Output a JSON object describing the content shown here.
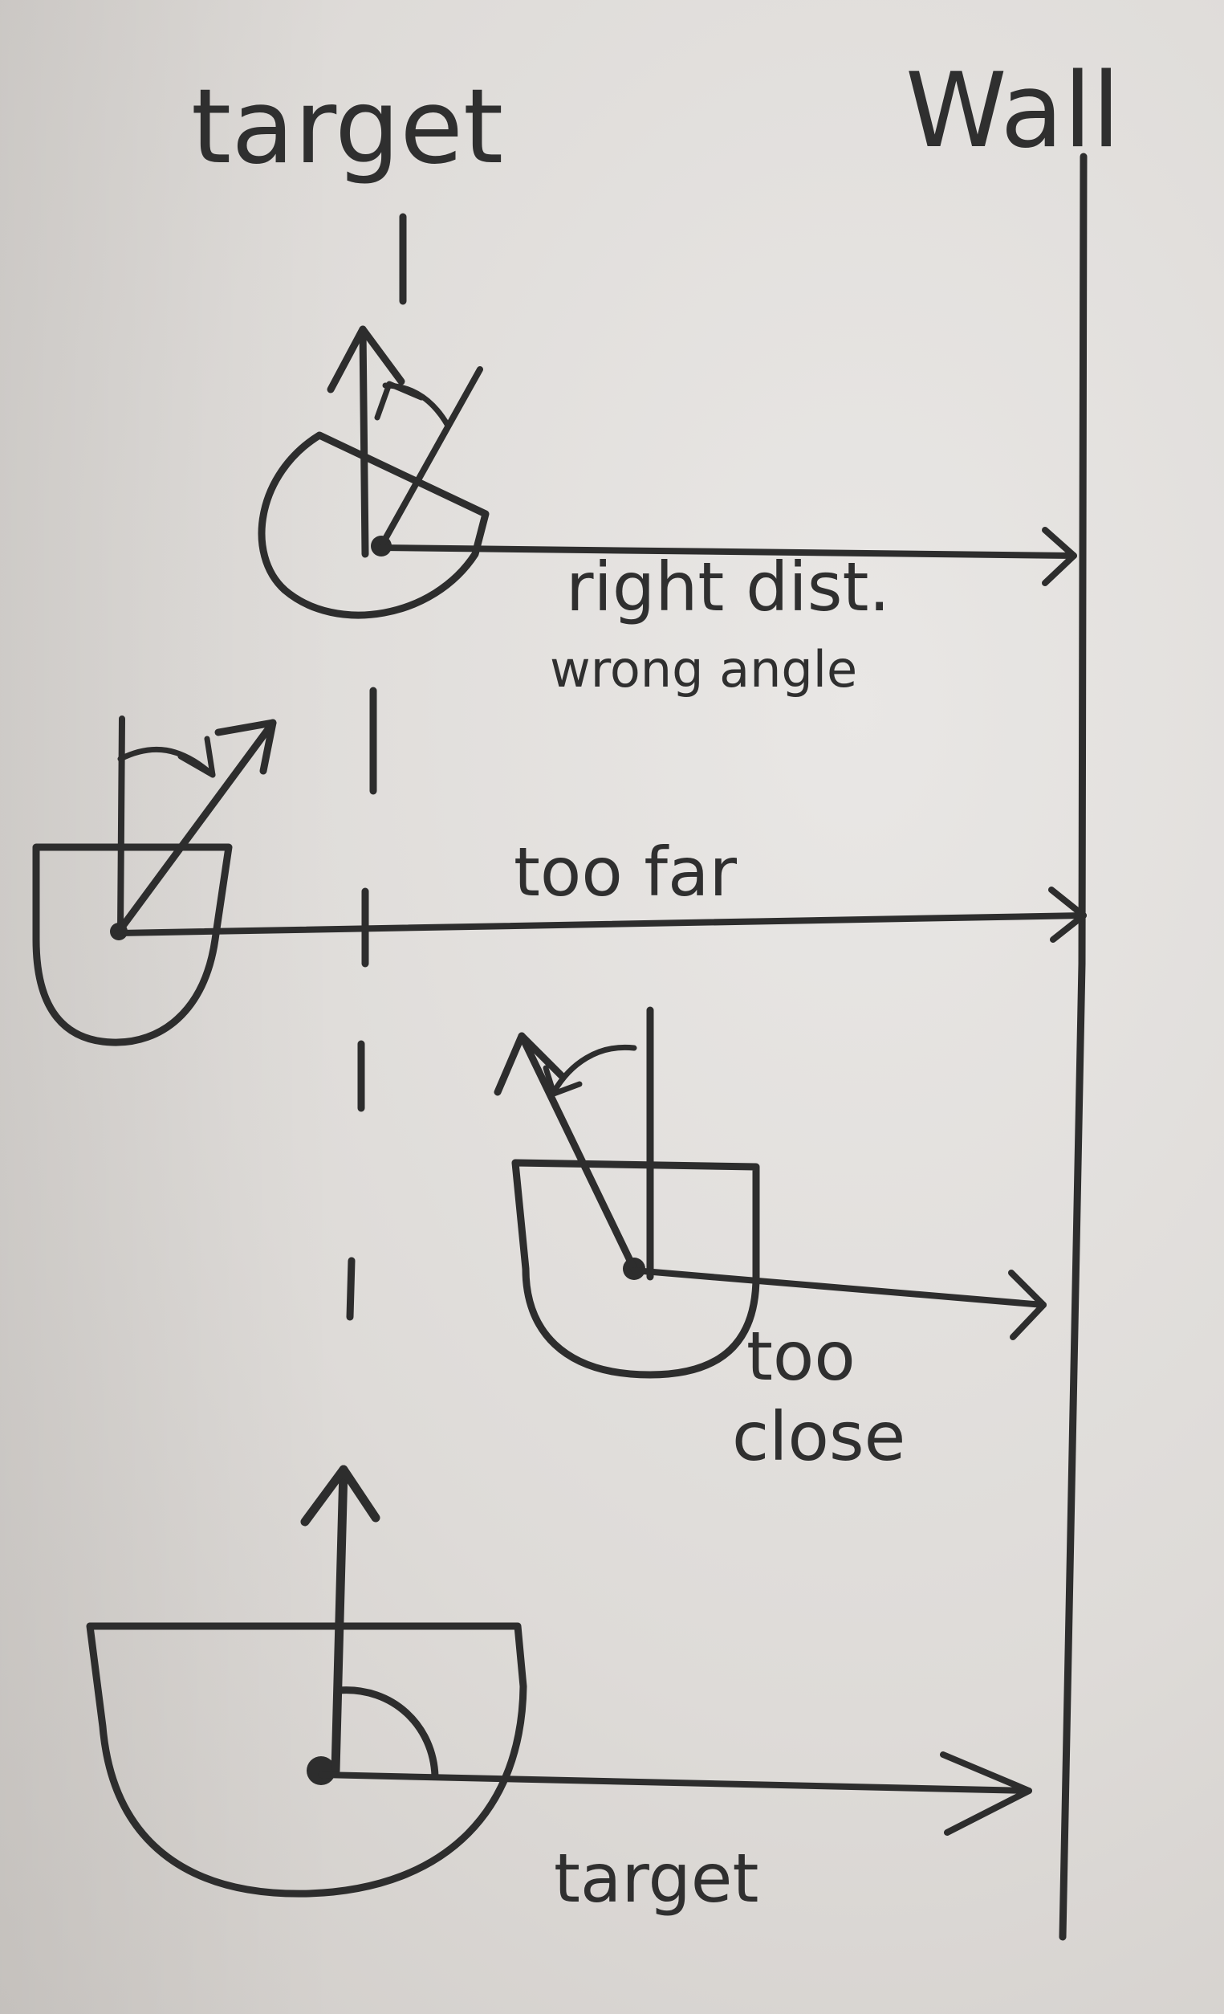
{
  "labels": {
    "target_top": "target",
    "wall": "Wall",
    "right_dist": "right dist.",
    "wrong_angle": "wrong angle",
    "too_far": "too far",
    "too_close_1": "too",
    "too_close_2": "close",
    "target_bottom": "target"
  },
  "colors": {
    "paper": "#e6e3e0",
    "ink": "#2d2d2d"
  }
}
